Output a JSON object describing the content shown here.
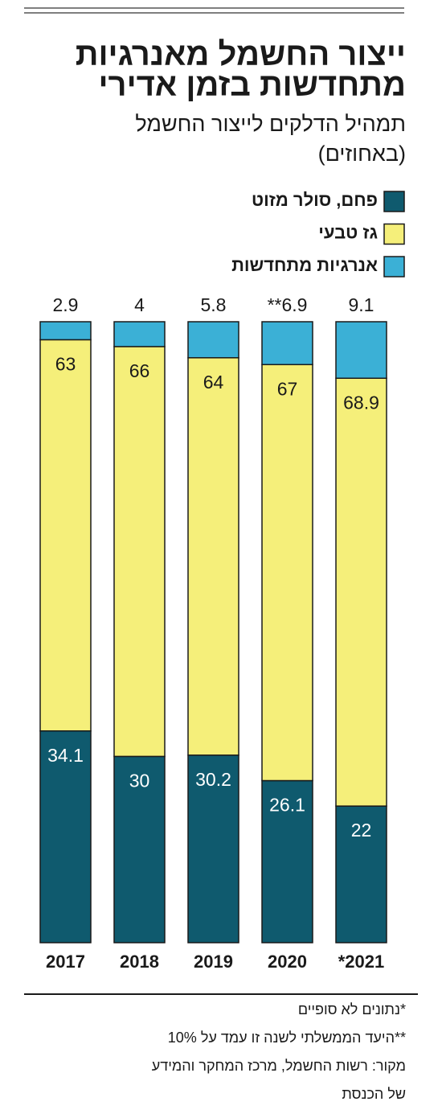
{
  "chart_data": {
    "type": "stacked_bar",
    "title": [
      "ייצור החשמל מאנרגיות",
      "מתחדשות בזמן אדירי"
    ],
    "subtitle": [
      "תמהיל הדלקים לייצור החשמל",
      "(באחוזים)"
    ],
    "categories": [
      "2017",
      "2018",
      "2019",
      "2020",
      "*2021"
    ],
    "ylim": [
      0,
      100
    ],
    "series": [
      {
        "name": "פחם, סולר מזוט",
        "color": "#0f5a6e",
        "values": [
          34.1,
          30,
          30.2,
          26.1,
          22
        ]
      },
      {
        "name": "גז טבעי",
        "color": "#f5ef7a",
        "values": [
          63,
          66,
          64,
          67,
          68.9
        ]
      },
      {
        "name": "אנרגיות מתחדשות",
        "color": "#3bb0d6",
        "values": [
          2.9,
          4,
          5.8,
          6.9,
          9.1
        ],
        "value_labels": [
          "2.9",
          "4",
          "5.8",
          "**6.9",
          "9.1"
        ]
      }
    ],
    "notes": [
      "*נתונים לא סופיים",
      "**היעד הממשלתי לשנה זו עמד על 10%",
      "מקור: רשות החשמל, מרכז המחקר והמידע",
      "של הכנסת"
    ]
  }
}
